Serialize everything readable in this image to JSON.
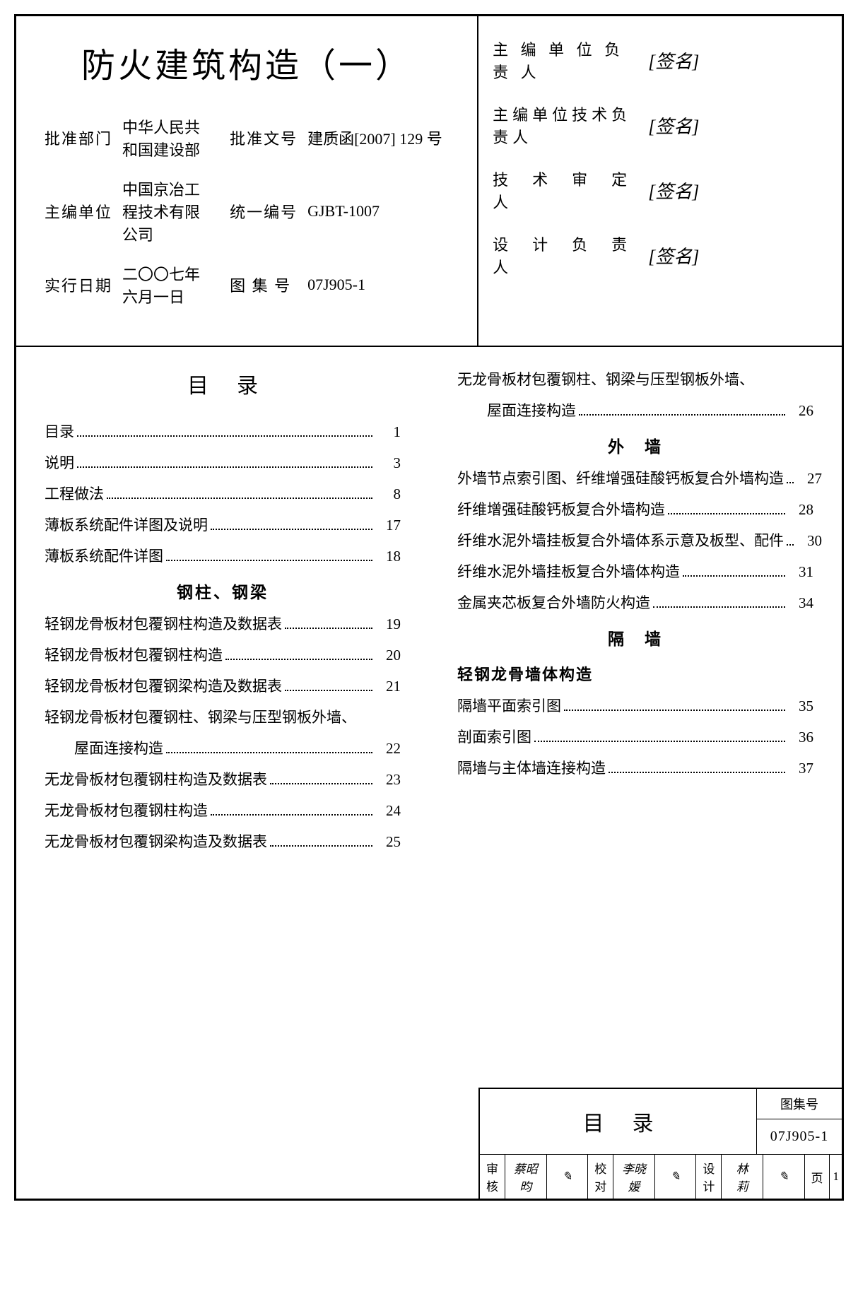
{
  "main_title": "防火建筑构造（一）",
  "header_info": {
    "approval_dept_label": "批准部门",
    "approval_dept": "中华人民共和国建设部",
    "approval_no_label": "批准文号",
    "approval_no": "建质函[2007] 129 号",
    "editor_unit_label": "主编单位",
    "editor_unit": "中国京冶工程技术有限公司",
    "unified_no_label": "统一编号",
    "unified_no": "GJBT-1007",
    "effective_date_label": "实行日期",
    "effective_date": "二〇〇七年六月一日",
    "atlas_no_label": "图 集 号",
    "atlas_no": "07J905-1"
  },
  "roles": [
    {
      "label": "主 编 单 位 负 责 人",
      "sig": "[签名]"
    },
    {
      "label": "主编单位技术负责人",
      "sig": "[签名]"
    },
    {
      "label": "技　术　审　定　人",
      "sig": "[签名]"
    },
    {
      "label": "设　计　负　责　人",
      "sig": "[签名]"
    }
  ],
  "toc_title": "目录",
  "toc_left": [
    {
      "text": "目录",
      "page": "1"
    },
    {
      "text": "说明",
      "page": "3"
    },
    {
      "text": "工程做法",
      "page": "8"
    },
    {
      "text": "薄板系统配件详图及说明",
      "page": "17"
    },
    {
      "text": "薄板系统配件详图",
      "page": "18"
    }
  ],
  "section1": "钢柱、钢梁",
  "toc_left2": [
    {
      "text": "轻钢龙骨板材包覆钢柱构造及数据表",
      "page": "19"
    },
    {
      "text": "轻钢龙骨板材包覆钢柱构造",
      "page": "20"
    },
    {
      "text": "轻钢龙骨板材包覆钢梁构造及数据表",
      "page": "21"
    },
    {
      "text": "轻钢龙骨板材包覆钢柱、钢梁与压型钢板外墙、",
      "cont": "屋面连接构造",
      "page": "22"
    },
    {
      "text": "无龙骨板材包覆钢柱构造及数据表",
      "page": "23"
    },
    {
      "text": "无龙骨板材包覆钢柱构造",
      "page": "24"
    },
    {
      "text": "无龙骨板材包覆钢梁构造及数据表",
      "page": "25"
    }
  ],
  "toc_right1": [
    {
      "text": "无龙骨板材包覆钢柱、钢梁与压型钢板外墙、",
      "cont": "屋面连接构造",
      "page": "26"
    }
  ],
  "section2": "外　墙",
  "toc_right2": [
    {
      "text": "外墙节点索引图、纤维增强硅酸钙板复合外墙构造",
      "page": "27"
    },
    {
      "text": "纤维增强硅酸钙板复合外墙构造",
      "page": "28"
    },
    {
      "text": "纤维水泥外墙挂板复合外墙体系示意及板型、配件",
      "page": "30"
    },
    {
      "text": "纤维水泥外墙挂板复合外墙体构造",
      "page": "31"
    },
    {
      "text": "金属夹芯板复合外墙防火构造",
      "page": "34"
    }
  ],
  "section3": "隔　墙",
  "subsection3": "轻钢龙骨墙体构造",
  "toc_right3": [
    {
      "text": "隔墙平面索引图",
      "page": "35"
    },
    {
      "text": "剖面索引图",
      "page": "36"
    },
    {
      "text": "隔墙与主体墙连接构造",
      "page": "37"
    }
  ],
  "footer": {
    "title": "目录",
    "code_label": "图集号",
    "code_value": "07J905-1",
    "sigs": [
      {
        "label": "审核",
        "name": "蔡昭昀"
      },
      {
        "label": "校对",
        "name": "李晓媛"
      },
      {
        "label": "设计",
        "name": "林　莉"
      }
    ],
    "page_label": "页",
    "page_value": "1"
  }
}
